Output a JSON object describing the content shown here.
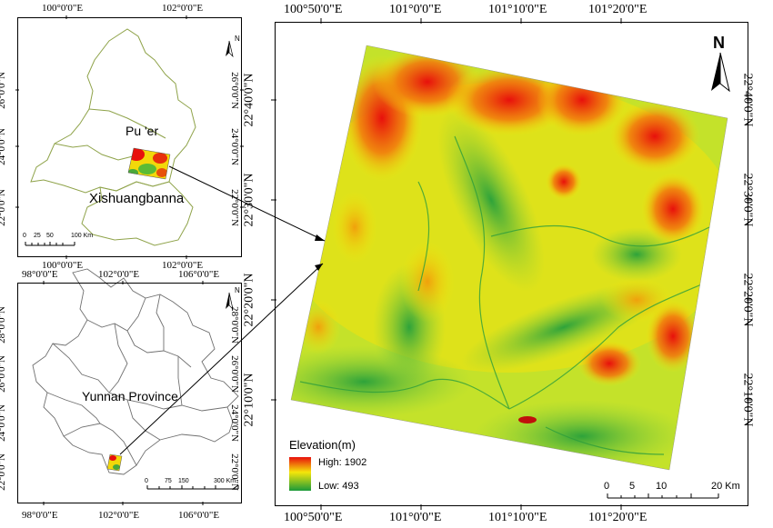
{
  "panel_top": {
    "x_ticks": [
      "100°0'0\"E",
      "102°0'0\"E"
    ],
    "y_ticks": [
      "26°0'0\"N",
      "24°0'0\"N",
      "22°0'0\"N"
    ],
    "labels": {
      "puer": "Pu 'er",
      "xsbn": "Xishuangbanna"
    },
    "scale_ticks": [
      "0",
      "25",
      "50",
      "100 Km"
    ],
    "north": "N"
  },
  "panel_bottom": {
    "x_ticks": [
      "98°0'0\"E",
      "102°0'0\"E",
      "106°0'0\"E"
    ],
    "y_ticks": [
      "28°0'0\"N",
      "26°0'0\"N",
      "24°0'0\"N",
      "22°0'0\"N"
    ],
    "labels": {
      "yunnan": "Yunnan Province"
    },
    "scale_ticks": [
      "0",
      "75",
      "150",
      "300 Km"
    ],
    "north": "N"
  },
  "panel_main": {
    "x_ticks": [
      "100°50'0\"E",
      "101°0'0\"E",
      "101°10'0\"E",
      "101°20'0\"E"
    ],
    "y_ticks": [
      "22°40'0\"N",
      "22°30'0\"N",
      "22°20'0\"N",
      "22°10'0\"N"
    ],
    "north": "N",
    "legend": {
      "title": "Elevation(m)",
      "high": "High: 1902",
      "low": "Low: 493"
    },
    "scale_ticks": [
      "0",
      "5",
      "10",
      "20 Km"
    ]
  }
}
